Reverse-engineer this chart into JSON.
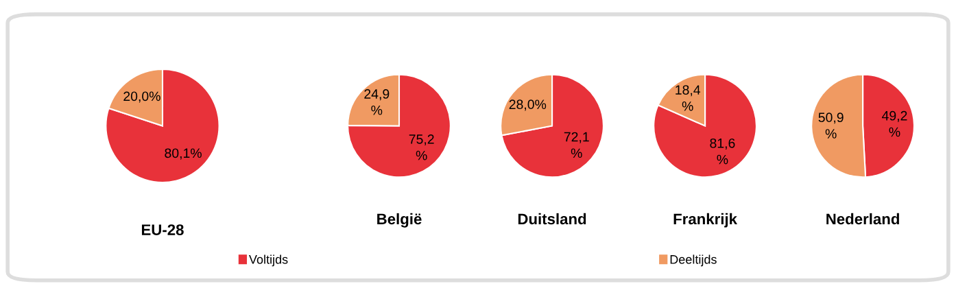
{
  "chart_data": [
    {
      "type": "pie",
      "title": "EU-28",
      "categories": [
        "Voltijds",
        "Deeltijds"
      ],
      "values": [
        80.1,
        20.0
      ],
      "colors": [
        "#e8323a",
        "#f09a62"
      ],
      "value_labels": [
        "80,1%",
        "20,0%"
      ],
      "legend": "bottom"
    },
    {
      "type": "pie",
      "title": "België",
      "categories": [
        null,
        null
      ],
      "values": [
        75.2,
        24.9
      ],
      "colors": [
        "#e8323a",
        "#f09a62"
      ],
      "value_labels": [
        "75,2\n%",
        "24,9\n%"
      ]
    },
    {
      "type": "pie",
      "title": "Duitsland",
      "categories": [
        null,
        null
      ],
      "values": [
        72.1,
        28.0
      ],
      "colors": [
        "#e8323a",
        "#f09a62"
      ],
      "value_labels": [
        "72,1\n%",
        "28,0%"
      ]
    },
    {
      "type": "pie",
      "title": "Frankrijk",
      "categories": [
        null,
        null
      ],
      "values": [
        81.6,
        18.4
      ],
      "colors": [
        "#e8323a",
        "#f09a62"
      ],
      "value_labels": [
        "81,6\n%",
        "18,4\n%"
      ]
    },
    {
      "type": "pie",
      "title": "Nederland",
      "categories": [
        null,
        null
      ],
      "values": [
        49.2,
        50.9
      ],
      "colors": [
        "#e8323a",
        "#f09a62"
      ],
      "value_labels": [
        "49,2\n%",
        "50,9\n%"
      ]
    }
  ]
}
